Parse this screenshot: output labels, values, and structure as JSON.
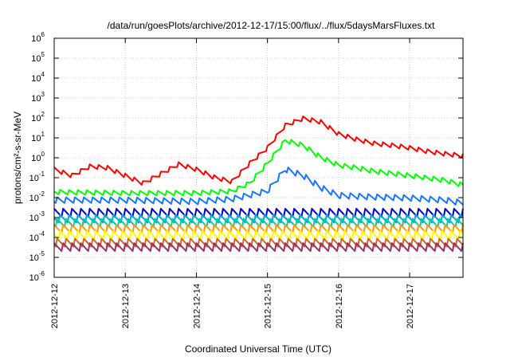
{
  "chart_data": {
    "type": "line",
    "title": "/data/run/goesPlots/archive/2012-12-17/15:00/flux/../flux/5daysMarsFluxes.txt",
    "xlabel": "Coordinated Universal Time (UTC)",
    "ylabel": "protons/cm²-s-sr-MeV",
    "yscale": "log",
    "ylim": [
      1e-06,
      1000000.0
    ],
    "ytick_exponents": [
      -6,
      -5,
      -4,
      -3,
      -2,
      -1,
      0,
      1,
      2,
      3,
      4,
      5,
      6
    ],
    "xlim": [
      "2012-12-12",
      "2012-12-17 18:00"
    ],
    "xticks": [
      "2012-12-12",
      "2012-12-13",
      "2012-12-14",
      "2012-12-15",
      "2012-12-16",
      "2012-12-17"
    ],
    "grid": true,
    "legend": "none",
    "series": [
      {
        "color": "#ff0000",
        "x": [
          "2012-12-12 00:00",
          "2012-12-12 06:00",
          "2012-12-12 12:00",
          "2012-12-12 18:00",
          "2012-12-13 00:00",
          "2012-12-13 06:00",
          "2012-12-13 12:00",
          "2012-12-13 18:00",
          "2012-12-14 00:00",
          "2012-12-14 06:00",
          "2012-12-14 12:00",
          "2012-12-14 18:00",
          "2012-12-15 00:00",
          "2012-12-15 06:00",
          "2012-12-15 12:00",
          "2012-12-15 18:00",
          "2012-12-16 00:00",
          "2012-12-16 06:00",
          "2012-12-16 12:00",
          "2012-12-16 18:00",
          "2012-12-17 00:00",
          "2012-12-17 06:00",
          "2012-12-17 12:00",
          "2012-12-17 18:00"
        ],
        "y": [
          0.25,
          0.12,
          0.35,
          0.3,
          0.12,
          0.05,
          0.15,
          0.45,
          0.25,
          0.1,
          0.06,
          0.5,
          3,
          40,
          90,
          60,
          15,
          8,
          5,
          4,
          3,
          2,
          1.5,
          1.2
        ],
        "sawtooth_ratio": 1.8
      },
      {
        "color": "#00ff00",
        "x": [
          "2012-12-12 00:00",
          "2012-12-12 12:00",
          "2012-12-13 00:00",
          "2012-12-13 12:00",
          "2012-12-14 00:00",
          "2012-12-14 12:00",
          "2012-12-14 18:00",
          "2012-12-15 00:00",
          "2012-12-15 06:00",
          "2012-12-15 12:00",
          "2012-12-15 18:00",
          "2012-12-16 00:00",
          "2012-12-16 06:00",
          "2012-12-16 12:00",
          "2012-12-17 00:00",
          "2012-12-17 12:00",
          "2012-12-17 18:00"
        ],
        "y": [
          0.018,
          0.017,
          0.016,
          0.016,
          0.016,
          0.02,
          0.05,
          0.5,
          7,
          4,
          1,
          0.4,
          0.3,
          0.2,
          0.12,
          0.07,
          0.04
        ],
        "sawtooth_ratio": 1.9
      },
      {
        "color": "#1a75ff",
        "x": [
          "2012-12-12 00:00",
          "2012-12-13 00:00",
          "2012-12-14 00:00",
          "2012-12-14 12:00",
          "2012-12-15 00:00",
          "2012-12-15 06:00",
          "2012-12-15 12:00",
          "2012-12-15 18:00",
          "2012-12-16 00:00",
          "2012-12-16 12:00",
          "2012-12-17 00:00",
          "2012-12-17 12:00",
          "2012-12-17 18:00"
        ],
        "y": [
          0.007,
          0.007,
          0.006,
          0.008,
          0.02,
          0.25,
          0.12,
          0.03,
          0.012,
          0.01,
          0.009,
          0.007,
          0.005
        ],
        "sawtooth_ratio": 2.2
      },
      {
        "color": "#0000cc",
        "x": [
          "2012-12-12 00:00",
          "2012-12-17 18:00"
        ],
        "y": [
          0.0016,
          0.0016
        ],
        "sawtooth_ratio": 3.0
      },
      {
        "color": "#00aacc",
        "x": [
          "2012-12-12 00:00",
          "2012-12-17 18:00"
        ],
        "y": [
          0.0008,
          0.0008
        ],
        "sawtooth_ratio": 3.0
      },
      {
        "color": "#00ccaa",
        "x": [
          "2012-12-12 00:00",
          "2012-12-17 18:00"
        ],
        "y": [
          0.0005,
          0.0005
        ],
        "sawtooth_ratio": 3.0
      },
      {
        "color": "#ff9900",
        "x": [
          "2012-12-12 00:00",
          "2012-12-17 18:00"
        ],
        "y": [
          0.00025,
          0.00025
        ],
        "sawtooth_ratio": 3.0
      },
      {
        "color": "#ffff00",
        "x": [
          "2012-12-12 00:00",
          "2012-12-17 18:00"
        ],
        "y": [
          0.00012,
          0.00012
        ],
        "sawtooth_ratio": 3.0
      },
      {
        "color": "#cc6633",
        "x": [
          "2012-12-12 00:00",
          "2012-12-17 18:00"
        ],
        "y": [
          5e-05,
          5e-05
        ],
        "sawtooth_ratio": 3.0
      },
      {
        "color": "#993366",
        "x": [
          "2012-12-12 00:00",
          "2012-12-17 18:00"
        ],
        "y": [
          3e-05,
          3e-05
        ],
        "sawtooth_ratio": 3.0
      }
    ]
  }
}
